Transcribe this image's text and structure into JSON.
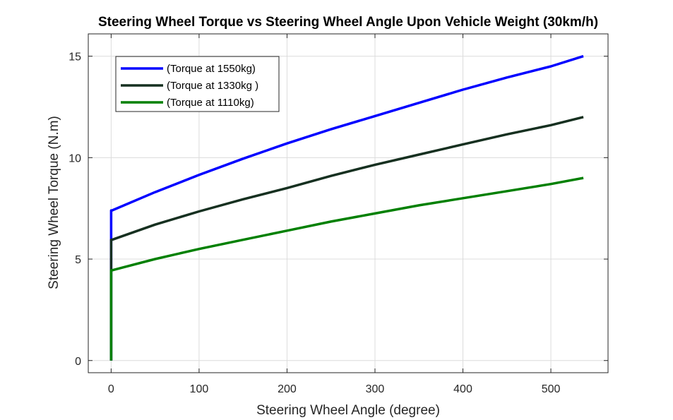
{
  "chart_data": {
    "type": "line",
    "title": "Steering Wheel Torque vs Steering Wheel Angle Upon Vehicle Weight (30km/h)",
    "xlabel": "Steering Wheel Angle (degree)",
    "ylabel": "Steering Wheel Torque (N.m)",
    "xlim": [
      -26,
      565
    ],
    "ylim": [
      -0.6,
      16.1
    ],
    "xticks": [
      0,
      100,
      200,
      300,
      400,
      500
    ],
    "yticks": [
      0,
      5,
      10,
      15
    ],
    "grid": true,
    "legend_position": "top-left",
    "series": [
      {
        "name": "(Torque at 1550kg)",
        "color": "#0000ff",
        "x": [
          0,
          0,
          1,
          50,
          100,
          150,
          200,
          250,
          300,
          350,
          400,
          450,
          500,
          537
        ],
        "y": [
          0,
          7.4,
          7.4,
          8.3,
          9.15,
          9.95,
          10.7,
          11.4,
          12.05,
          12.7,
          13.35,
          13.95,
          14.5,
          15.0
        ]
      },
      {
        "name": "(Torque at 1330kg )",
        "color": "#163020",
        "x": [
          0,
          0,
          1,
          50,
          100,
          150,
          200,
          250,
          300,
          350,
          400,
          450,
          500,
          537
        ],
        "y": [
          0,
          5.95,
          5.95,
          6.7,
          7.35,
          7.95,
          8.5,
          9.1,
          9.65,
          10.15,
          10.65,
          11.15,
          11.6,
          12.0
        ]
      },
      {
        "name": "(Torque at 1110kg)",
        "color": "#008000",
        "x": [
          0,
          0,
          1,
          50,
          100,
          150,
          200,
          250,
          300,
          350,
          400,
          450,
          500,
          537
        ],
        "y": [
          0,
          4.45,
          4.45,
          5.0,
          5.5,
          5.95,
          6.4,
          6.85,
          7.25,
          7.65,
          8.0,
          8.35,
          8.7,
          9.0
        ]
      }
    ]
  }
}
